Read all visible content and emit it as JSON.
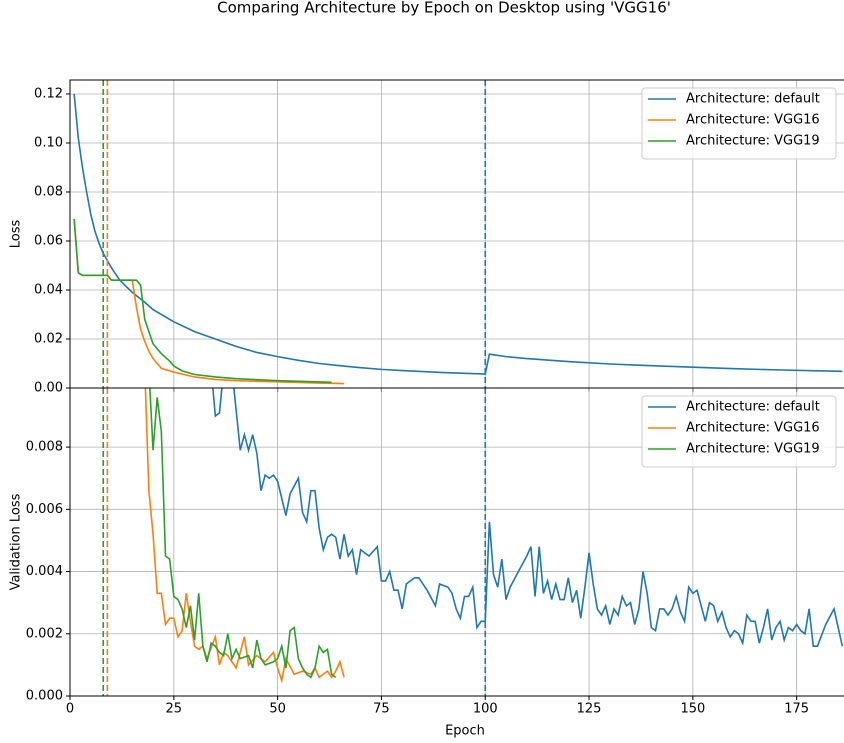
{
  "chart_data": [
    {
      "type": "line",
      "title": "Comparing Architecture by Epoch on Desktop using 'VGG16'",
      "ylabel": "Loss",
      "xlim": [
        0,
        186.4
      ],
      "xticks": [
        0,
        25,
        50,
        75,
        100,
        125,
        150,
        175
      ],
      "ylim": [
        0,
        0.1257
      ],
      "yticks": [
        {
          "value": 0,
          "label": "0.00"
        },
        0.02,
        0.04,
        0.06,
        0.08,
        {
          "value": 0.1,
          "label": "0.10"
        },
        0.12
      ],
      "grid": true,
      "legend": "upper right",
      "vlines": [
        {
          "x": 100,
          "color": "#1f77b4"
        },
        {
          "x": 9,
          "color": "#ff7f0e"
        },
        {
          "x": 8,
          "color": "#2ca02c"
        }
      ],
      "series": [
        {
          "name": "Architecture: default",
          "color": "#1f77b4",
          "x": [
            1,
            2,
            3,
            4,
            5,
            6,
            7,
            8,
            10,
            12,
            15,
            18,
            20,
            25,
            30,
            35,
            40,
            45,
            50,
            55,
            60,
            65,
            70,
            75,
            80,
            85,
            90,
            95,
            100,
            101,
            105,
            110,
            120,
            130,
            140,
            150,
            160,
            170,
            180,
            186
          ],
          "values": [
            0.12,
            0.102,
            0.09,
            0.08,
            0.071,
            0.064,
            0.059,
            0.055,
            0.049,
            0.044,
            0.039,
            0.035,
            0.032,
            0.027,
            0.023,
            0.02,
            0.017,
            0.0145,
            0.0128,
            0.0113,
            0.01,
            0.0091,
            0.0083,
            0.0076,
            0.0071,
            0.0067,
            0.0063,
            0.006,
            0.0057,
            0.0138,
            0.0128,
            0.012,
            0.0108,
            0.0098,
            0.0091,
            0.0085,
            0.0079,
            0.0074,
            0.007,
            0.0068
          ]
        },
        {
          "name": "Architecture: VGG16",
          "color": "#ff7f0e",
          "x": [
            1,
            2,
            3,
            5,
            8,
            9,
            10,
            12,
            15,
            16,
            17,
            18,
            19,
            20,
            22,
            25,
            30,
            35,
            40,
            50,
            60,
            66
          ],
          "values": [
            0.069,
            0.047,
            0.046,
            0.046,
            0.046,
            0.046,
            0.044,
            0.044,
            0.044,
            0.033,
            0.024,
            0.019,
            0.015,
            0.012,
            0.008,
            0.0065,
            0.0045,
            0.0035,
            0.003,
            0.0025,
            0.002,
            0.0018
          ]
        },
        {
          "name": "Architecture: VGG19",
          "color": "#2ca02c",
          "x": [
            1,
            2,
            3,
            5,
            8,
            9,
            10,
            12,
            15,
            16,
            17,
            18,
            20,
            22,
            24,
            25,
            27,
            30,
            35,
            40,
            50,
            63
          ],
          "values": [
            0.069,
            0.047,
            0.046,
            0.046,
            0.046,
            0.046,
            0.044,
            0.044,
            0.044,
            0.044,
            0.042,
            0.028,
            0.018,
            0.014,
            0.011,
            0.009,
            0.007,
            0.0055,
            0.0045,
            0.0038,
            0.003,
            0.0023
          ]
        }
      ]
    },
    {
      "type": "line",
      "ylabel": "Validation Loss",
      "xlabel": "Epoch",
      "xlim": [
        0,
        186.4
      ],
      "xticks": [
        0,
        25,
        50,
        75,
        100,
        125,
        150,
        175
      ],
      "ylim": [
        0,
        0.0099
      ],
      "yticks": [
        {
          "value": 0,
          "label": "0.000"
        },
        0.002,
        0.004,
        0.006,
        0.008
      ],
      "grid": true,
      "legend": "upper right",
      "vlines": [
        {
          "x": 100,
          "color": "#1f77b4"
        },
        {
          "x": 9,
          "color": "#ff7f0e"
        },
        {
          "x": 8,
          "color": "#2ca02c"
        }
      ],
      "series": [
        {
          "name": "Architecture: default",
          "color": "#1f77b4",
          "x": [
            34,
            35,
            36,
            37,
            39,
            41,
            42,
            43,
            44,
            45,
            46,
            47,
            48,
            49,
            50,
            52,
            53,
            55,
            56,
            57,
            58,
            59,
            60,
            61,
            62,
            63,
            64,
            65,
            66,
            67,
            68,
            69,
            70,
            72,
            74,
            75,
            76,
            77,
            78,
            79,
            80,
            81,
            83,
            84,
            86,
            88,
            89,
            91,
            92,
            93,
            94,
            95,
            96,
            97,
            98,
            99,
            100,
            101,
            102,
            103,
            104,
            105,
            106,
            108,
            110,
            111,
            112,
            113,
            114,
            115,
            116,
            117,
            118,
            119,
            120,
            121,
            122,
            123,
            124,
            125,
            126,
            127,
            128,
            129,
            130,
            131,
            132,
            133,
            134,
            135,
            136,
            137,
            138,
            139,
            140,
            141,
            142,
            143,
            144,
            145,
            146,
            147,
            148,
            149,
            150,
            151,
            152,
            153,
            154,
            155,
            156,
            157,
            158,
            159,
            160,
            161,
            162,
            163,
            164,
            165,
            166,
            167,
            168,
            169,
            170,
            171,
            172,
            173,
            174,
            175,
            176,
            177,
            178,
            179,
            180,
            182,
            184,
            186
          ],
          "values": [
            0.0105,
            0.009,
            0.0091,
            0.0105,
            0.0105,
            0.0079,
            0.0084,
            0.0079,
            0.0084,
            0.0078,
            0.0066,
            0.0071,
            0.007,
            0.0071,
            0.0069,
            0.0058,
            0.0065,
            0.007,
            0.0059,
            0.0056,
            0.0066,
            0.0066,
            0.0054,
            0.0047,
            0.0051,
            0.0052,
            0.0051,
            0.0044,
            0.0052,
            0.0045,
            0.0047,
            0.0039,
            0.0047,
            0.0045,
            0.0048,
            0.0037,
            0.0037,
            0.004,
            0.0034,
            0.0034,
            0.0028,
            0.0036,
            0.0038,
            0.0038,
            0.0034,
            0.0029,
            0.0036,
            0.0035,
            0.0033,
            0.0028,
            0.0025,
            0.0032,
            0.0032,
            0.0035,
            0.0022,
            0.0024,
            0.0024,
            0.0056,
            0.0039,
            0.0035,
            0.0044,
            0.0031,
            0.0035,
            0.004,
            0.0045,
            0.0048,
            0.0032,
            0.0048,
            0.0033,
            0.0037,
            0.0031,
            0.0036,
            0.0031,
            0.0031,
            0.0038,
            0.003,
            0.0034,
            0.0025,
            0.0035,
            0.0046,
            0.0036,
            0.0028,
            0.0026,
            0.0029,
            0.0023,
            0.0028,
            0.0026,
            0.0032,
            0.0029,
            0.003,
            0.0023,
            0.0028,
            0.004,
            0.0033,
            0.0022,
            0.0021,
            0.0028,
            0.0028,
            0.0026,
            0.0028,
            0.0032,
            0.0027,
            0.0024,
            0.0035,
            0.0033,
            0.0034,
            0.0029,
            0.0024,
            0.003,
            0.0029,
            0.0024,
            0.0027,
            0.0022,
            0.0019,
            0.0021,
            0.002,
            0.0017,
            0.0026,
            0.0024,
            0.0024,
            0.0017,
            0.0022,
            0.0028,
            0.0018,
            0.0022,
            0.0024,
            0.0018,
            0.0022,
            0.0021,
            0.0023,
            0.0021,
            0.002,
            0.0028,
            0.0016,
            0.0016,
            0.0023,
            0.0028,
            0.0016
          ]
        },
        {
          "name": "Architecture: VGG16",
          "color": "#ff7f0e",
          "x": [
            18,
            19,
            20,
            21,
            22,
            23,
            24,
            25,
            26,
            27,
            28,
            29,
            30,
            31,
            32,
            33,
            35,
            36,
            37,
            38,
            40,
            42,
            43,
            45,
            47,
            49,
            50,
            51,
            52,
            54,
            56,
            58,
            59,
            60,
            62,
            63,
            64,
            65,
            66
          ],
          "values": [
            0.0105,
            0.0066,
            0.0052,
            0.0033,
            0.0033,
            0.0023,
            0.0025,
            0.0025,
            0.0019,
            0.0021,
            0.0033,
            0.0024,
            0.0016,
            0.0015,
            0.0016,
            0.0012,
            0.0019,
            0.001,
            0.0014,
            0.0013,
            0.0009,
            0.0019,
            0.001,
            0.0013,
            0.0011,
            0.0014,
            0.0009,
            0.0005,
            0.0012,
            0.0007,
            0.0008,
            0.0007,
            0.0009,
            0.0006,
            0.0008,
            0.0006,
            0.0008,
            0.0011,
            0.0006
          ]
        },
        {
          "name": "Architecture: VGG19",
          "color": "#2ca02c",
          "x": [
            19,
            20,
            21,
            22,
            23,
            24,
            25,
            26,
            27,
            28,
            29,
            30,
            31,
            32,
            33,
            34,
            35,
            36,
            37,
            38,
            39,
            40,
            41,
            43,
            44,
            45,
            46,
            47,
            49,
            50,
            51,
            52,
            53,
            54,
            55,
            56,
            57,
            58,
            59,
            60,
            61,
            62,
            63,
            64
          ],
          "values": [
            0.0105,
            0.0079,
            0.0096,
            0.0085,
            0.0045,
            0.0044,
            0.0032,
            0.0031,
            0.0028,
            0.0022,
            0.0029,
            0.0018,
            0.0033,
            0.0016,
            0.0011,
            0.0017,
            0.0016,
            0.0014,
            0.0013,
            0.002,
            0.0012,
            0.0015,
            0.0012,
            0.0013,
            0.0009,
            0.0018,
            0.0012,
            0.001,
            0.0011,
            0.0012,
            0.0016,
            0.0009,
            0.0021,
            0.0022,
            0.0012,
            0.0009,
            0.0007,
            0.0006,
            0.0009,
            0.0016,
            0.0014,
            0.0015,
            0.0007,
            0.0006
          ]
        }
      ]
    }
  ]
}
